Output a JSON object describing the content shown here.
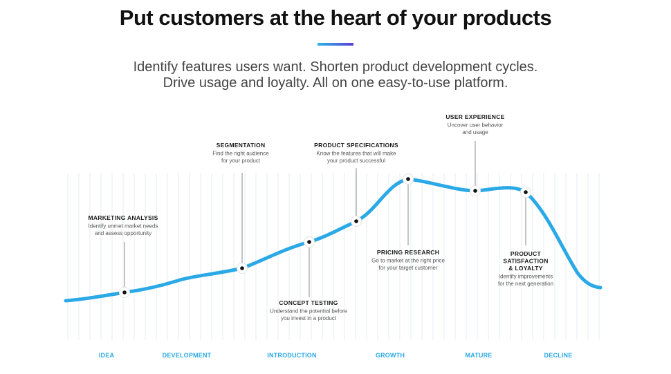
{
  "header": {
    "title": "Put customers at the heart of your products",
    "subtitle_line1": "Identify features users want. Shorten product development cycles.",
    "subtitle_line2": "Drive usage and loyalty. All on one easy-to-use platform."
  },
  "colors": {
    "curve": "#2aa9e6",
    "stage_label": "#2aa9e6",
    "title": "#111111",
    "accent_gradient": [
      "#2bb4e6",
      "#5a3fd6"
    ]
  },
  "stages": [
    "IDEA",
    "DEVELOPMENT",
    "INTRODUCTION",
    "GROWTH",
    "MATURE",
    "DECLINE"
  ],
  "annotations": [
    {
      "title": [
        "MARKETING ANALYSIS"
      ],
      "desc": [
        "Identify unmet market needs",
        "and assess opportunity"
      ]
    },
    {
      "title": [
        "SEGMENTATION"
      ],
      "desc": [
        "Find the right audience",
        "for your product"
      ]
    },
    {
      "title": [
        "CONCEPT TESTING"
      ],
      "desc": [
        "Understand the potential before",
        "you invest in a product"
      ]
    },
    {
      "title": [
        "PRODUCT SPECIFICATIONS"
      ],
      "desc": [
        "Know the features that will make",
        "your product successful"
      ]
    },
    {
      "title": [
        "PRICING RESEARCH"
      ],
      "desc": [
        "Go to market at the right price",
        "for your target customer"
      ]
    },
    {
      "title": [
        "USER EXPERIENCE"
      ],
      "desc": [
        "Uncover user behavior",
        "and usage"
      ]
    },
    {
      "title": [
        "PRODUCT",
        "SATISFACTION",
        "& LOYALTY"
      ],
      "desc": [
        "Identify improvements",
        "for the next generation"
      ]
    }
  ]
}
